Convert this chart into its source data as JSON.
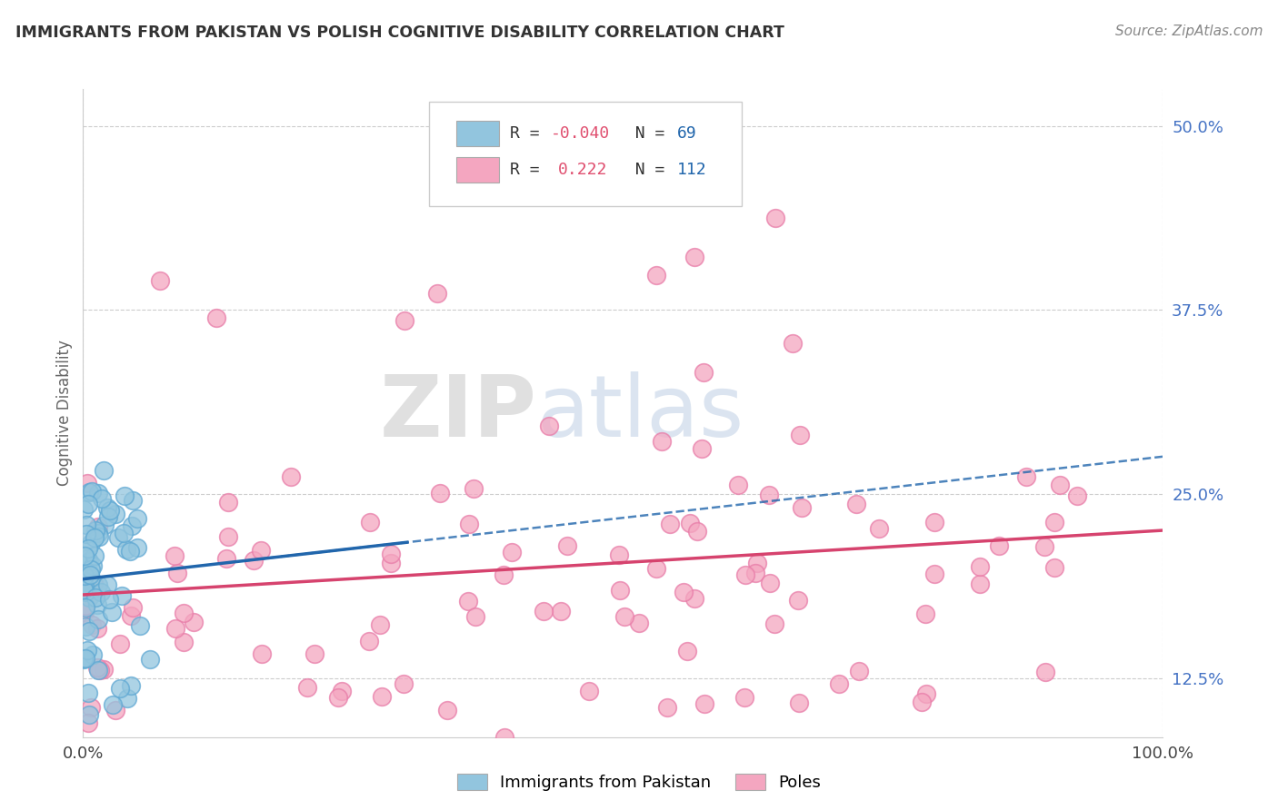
{
  "title": "IMMIGRANTS FROM PAKISTAN VS POLISH COGNITIVE DISABILITY CORRELATION CHART",
  "source_text": "Source: ZipAtlas.com",
  "ylabel": "Cognitive Disability",
  "watermark_zip": "ZIP",
  "watermark_atlas": "atlas",
  "series1_name": "Immigrants from Pakistan",
  "series2_name": "Poles",
  "series1_color": "#92c5de",
  "series2_color": "#f4a6c0",
  "series1_edge_color": "#5fa8d3",
  "series2_edge_color": "#e87ca8",
  "series1_line_color": "#2166ac",
  "series2_line_color": "#d6436e",
  "xlim": [
    0.0,
    1.0
  ],
  "ylim": [
    0.085,
    0.525
  ],
  "yticks": [
    0.125,
    0.25,
    0.375,
    0.5
  ],
  "ytick_labels": [
    "12.5%",
    "25.0%",
    "37.5%",
    "50.0%"
  ],
  "xticks": [
    0.0,
    1.0
  ],
  "xtick_labels": [
    "0.0%",
    "100.0%"
  ],
  "background_color": "#ffffff",
  "grid_color": "#cccccc",
  "r1": -0.04,
  "n1": 69,
  "r2": 0.222,
  "n2": 112,
  "r_color": "#2166ac",
  "n_color": "#2166ac",
  "r1_val_color": "#d6436e",
  "r2_val_color": "#d6436e",
  "seed": 42
}
